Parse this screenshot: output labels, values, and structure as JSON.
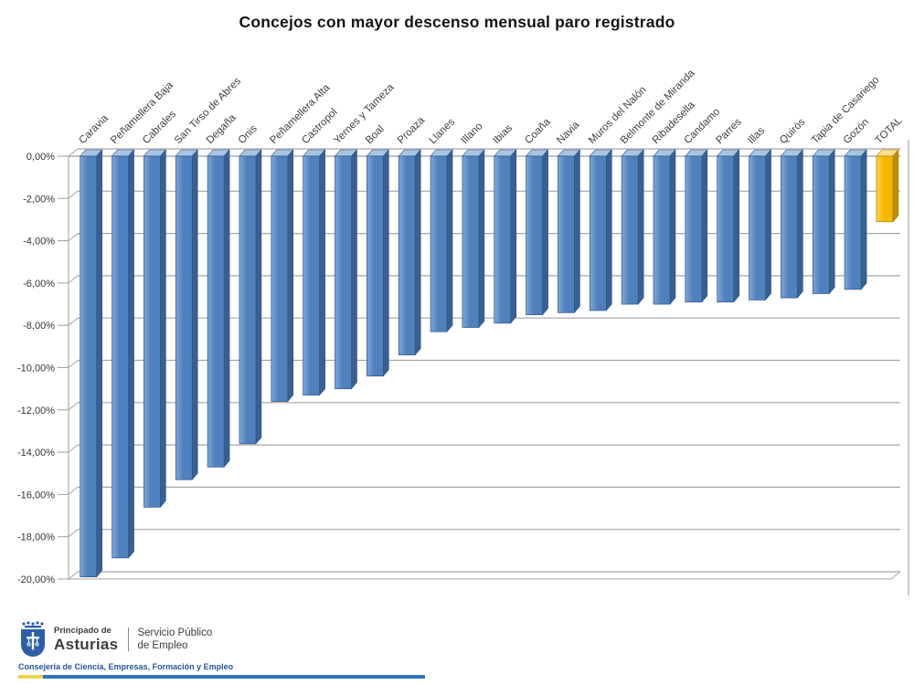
{
  "chart_data": {
    "type": "bar",
    "style": "3d-column",
    "title": "Concejos con mayor descenso mensual paro registrado",
    "xlabel": "",
    "ylabel": "",
    "ylim": [
      -20,
      0
    ],
    "ytick_step_pct": 2,
    "grid": true,
    "legend": "none",
    "ytick_labels": [
      "0,00%",
      "-2,00%",
      "-4,00%",
      "-6,00%",
      "-8,00%",
      "-10,00%",
      "-12,00%",
      "-14,00%",
      "-16,00%",
      "-18,00%",
      "-20,00%"
    ],
    "categories": [
      "Caravia",
      "Peñamellera Baja",
      "Cabrales",
      "San Tirso de Abres",
      "Degaña",
      "Onis",
      "Peñamellera Alta",
      "Castropol",
      "Yernes y Tameza",
      "Boal",
      "Proaza",
      "Llanes",
      "Illano",
      "Ibias",
      "Coaña",
      "Navia",
      "Muros del Nalón",
      "Belmonte de Miranda",
      "Ribadesella",
      "Candamo",
      "Parres",
      "Illas",
      "Quirós",
      "Tapia de Casariego",
      "Gozón",
      "TOTAL"
    ],
    "values": [
      -19.9,
      -19.0,
      -16.6,
      -15.3,
      -14.7,
      -13.6,
      -11.6,
      -11.3,
      -11.0,
      -10.4,
      -9.4,
      -8.3,
      -8.1,
      -7.9,
      -7.5,
      -7.4,
      -7.3,
      -7.0,
      -7.0,
      -6.9,
      -6.9,
      -6.8,
      -6.7,
      -6.5,
      -6.3,
      -3.1
    ],
    "highlight_category": "TOTAL",
    "colors": {
      "bar_front": "#4F81BD",
      "bar_front_light": "#7FA8D9",
      "bar_side": "#38618F",
      "bar_top": "#A8C4E5",
      "bar_stroke": "#2C558C",
      "highlight_front": "#F5B800",
      "highlight_front_light": "#FFD34D",
      "highlight_side": "#BD8E00",
      "highlight_top": "#FFE08A",
      "highlight_stroke": "#A67C00",
      "gridline": "#A6A6A6",
      "axis_line": "#9E9E9E",
      "tick_text": "#333333",
      "category_text": "#3F3F3F"
    }
  },
  "footer": {
    "logo": {
      "org_small": "Principado de",
      "org_large": "Asturias",
      "service_line1": "Servicio Público",
      "service_line2": "de Empleo",
      "shield_icon": "asturias-victory-cross-shield",
      "shield_color": "#2D5FA6"
    },
    "department": "Consejería de Ciencia, Empresas, Formación y Empleo",
    "bar_yellow": "#E7D44C",
    "bar_blue": "#2E75B6"
  }
}
